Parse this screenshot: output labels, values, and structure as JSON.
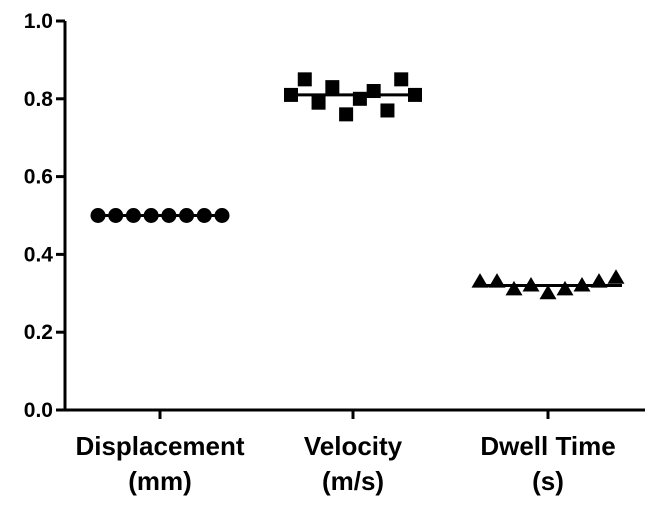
{
  "chart_data": {
    "type": "scatter",
    "title": "",
    "xlabel": "",
    "ylabel": "",
    "ylim": [
      0,
      1.0
    ],
    "yticks": [
      0.0,
      0.2,
      0.4,
      0.6,
      0.8,
      1.0
    ],
    "ytick_labels": [
      "0.0",
      "0.2",
      "0.4",
      "0.6",
      "0.8",
      "1.0"
    ],
    "categories": [
      {
        "line1": "Displacement",
        "line2": "(mm)"
      },
      {
        "line1": "Velocity",
        "line2": "(m/s)"
      },
      {
        "line1": "Dwell Time",
        "line2": "(s)"
      }
    ],
    "series": [
      {
        "category": 0,
        "marker": "circle",
        "mean": 0.5,
        "values": [
          0.5,
          0.5,
          0.5,
          0.5,
          0.5,
          0.5,
          0.5,
          0.5
        ]
      },
      {
        "category": 1,
        "marker": "square",
        "mean": 0.81,
        "values": [
          0.81,
          0.85,
          0.79,
          0.83,
          0.76,
          0.8,
          0.82,
          0.77,
          0.85,
          0.81
        ]
      },
      {
        "category": 2,
        "marker": "triangle",
        "mean": 0.32,
        "values": [
          0.33,
          0.33,
          0.31,
          0.32,
          0.3,
          0.31,
          0.32,
          0.33,
          0.34
        ]
      }
    ],
    "grid": false,
    "legend": "none",
    "marker_color": "#000000"
  }
}
